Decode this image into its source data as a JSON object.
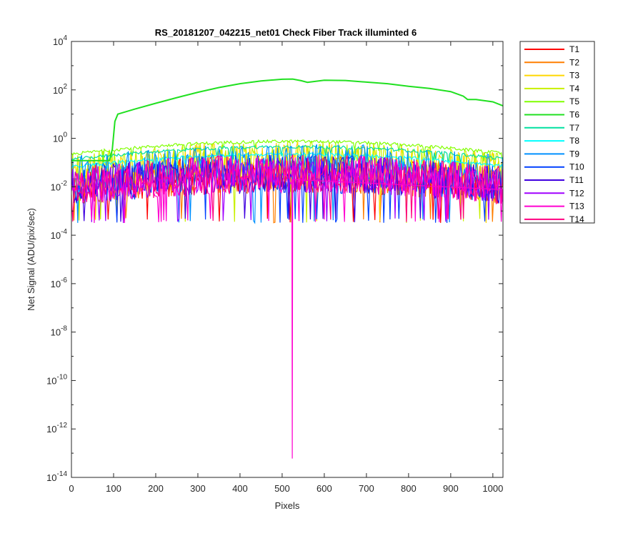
{
  "chart_data": {
    "type": "line",
    "title": "RS_20181207_042215_net01   Check Fiber     Track illuminted 6",
    "xlabel": "Pixels",
    "ylabel": "Net Signal (ADU/pix/sec)",
    "xlim": [
      0,
      1024
    ],
    "ylim": [
      1e-14,
      10000.0
    ],
    "yscale": "log",
    "xticks": [
      0,
      100,
      200,
      300,
      400,
      500,
      600,
      700,
      800,
      900,
      1000
    ],
    "yticks": [
      {
        "value": 10000.0,
        "base": "10",
        "exp": "4"
      },
      {
        "value": 100.0,
        "base": "10",
        "exp": "2"
      },
      {
        "value": 1.0,
        "base": "10",
        "exp": "0"
      },
      {
        "value": 0.01,
        "base": "10",
        "exp": "-2"
      },
      {
        "value": 0.0001,
        "base": "10",
        "exp": "-4"
      },
      {
        "value": 1e-06,
        "base": "10",
        "exp": "-6"
      },
      {
        "value": 1e-08,
        "base": "10",
        "exp": "-8"
      },
      {
        "value": 1e-10,
        "base": "10",
        "exp": "-10"
      },
      {
        "value": 1e-12,
        "base": "10",
        "exp": "-12"
      },
      {
        "value": 1e-14,
        "base": "10",
        "exp": "-14"
      }
    ],
    "grid": false,
    "legend_position": "outside-top-right",
    "series": [
      {
        "name": "T1",
        "color": "#ff0000"
      },
      {
        "name": "T2",
        "color": "#ff7f00"
      },
      {
        "name": "T3",
        "color": "#ffd700"
      },
      {
        "name": "T4",
        "color": "#c8f000"
      },
      {
        "name": "T5",
        "color": "#80ff00"
      },
      {
        "name": "T6",
        "color": "#20e020",
        "x": [
          0,
          90,
          97,
          103,
          110,
          150,
          200,
          250,
          300,
          350,
          400,
          450,
          500,
          525,
          545,
          560,
          600,
          650,
          700,
          750,
          800,
          850,
          900,
          930,
          940,
          960,
          1000,
          1024
        ],
        "y": [
          0.12,
          0.12,
          0.35,
          5,
          10,
          16,
          28,
          48,
          80,
          125,
          180,
          235,
          275,
          280,
          240,
          205,
          250,
          245,
          210,
          180,
          140,
          115,
          85,
          55,
          40,
          40,
          32,
          22
        ]
      },
      {
        "name": "T7",
        "color": "#00e0a0"
      },
      {
        "name": "T8",
        "color": "#00ffff"
      },
      {
        "name": "T9",
        "color": "#0090ff"
      },
      {
        "name": "T10",
        "color": "#0040ff"
      },
      {
        "name": "T11",
        "color": "#4000e0"
      },
      {
        "name": "T12",
        "color": "#a000ff"
      },
      {
        "name": "T13",
        "color": "#ff00d0",
        "annotation": {
          "x": 524,
          "y": 6e-14
        }
      },
      {
        "name": "T14",
        "color": "#ff0080"
      }
    ]
  }
}
